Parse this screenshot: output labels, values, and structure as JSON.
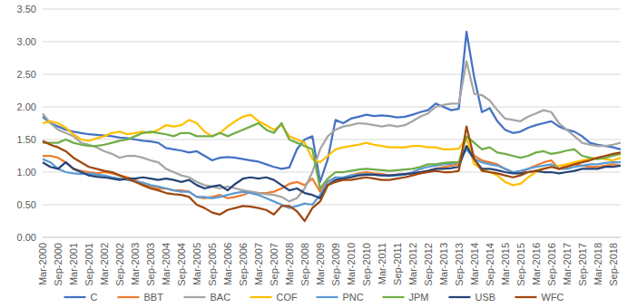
{
  "chart_data": {
    "type": "line",
    "categories": [
      "Mar-2000",
      null,
      "Sep-2000",
      null,
      "Mar-2001",
      null,
      "Sep-2001",
      null,
      "Mar-2002",
      null,
      "Sep-2002",
      null,
      "Mar-2003",
      null,
      "Sep-2003",
      null,
      "Mar-2004",
      null,
      "Sep-2004",
      null,
      "Mar-2005",
      null,
      "Sep-2005",
      null,
      "Mar-2006",
      null,
      "Sep-2006",
      null,
      "Mar-2007",
      null,
      "Sep-2007",
      null,
      "Mar-2008",
      null,
      "Sep-2008",
      null,
      "Mar-2009",
      null,
      "Sep-2009",
      null,
      "Mar-2010",
      null,
      "Sep-2010",
      null,
      "Mar-2011",
      null,
      "Sep-2011",
      null,
      "Mar-2012",
      null,
      "Sep-2012",
      null,
      "Mar-2013",
      null,
      "Sep-2013",
      null,
      "Mar-2014",
      null,
      "Sep-2014",
      null,
      "Mar-2015",
      null,
      "Sep-2015",
      null,
      "Mar-2016",
      null,
      "Sep-2016",
      null,
      "Mar-2017",
      null,
      "Sep-2017",
      null,
      "Mar-2018",
      null,
      "Sep-2018",
      null
    ],
    "ylim": [
      0,
      3.5
    ],
    "yticks": [
      {
        "value": 0,
        "label": "0.00"
      },
      {
        "value": 0.5,
        "label": "0.50"
      },
      {
        "value": 1,
        "label": "1.00"
      },
      {
        "value": 1.5,
        "label": "1.50"
      },
      {
        "value": 2,
        "label": "2.00"
      },
      {
        "value": 2.5,
        "label": "2.50"
      },
      {
        "value": 3,
        "label": "3.00"
      },
      {
        "value": 3.5,
        "label": "3.50"
      }
    ],
    "grid": true,
    "legend": "bottom",
    "series": [
      {
        "name": "C",
        "color": "#4472c4",
        "values": [
          1.85,
          1.75,
          1.7,
          1.65,
          1.62,
          1.6,
          1.58,
          1.57,
          1.56,
          1.55,
          1.53,
          1.52,
          1.5,
          1.48,
          1.47,
          1.45,
          1.37,
          1.35,
          1.33,
          1.3,
          1.32,
          1.25,
          1.18,
          1.22,
          1.23,
          1.22,
          1.2,
          1.18,
          1.16,
          1.12,
          1.08,
          1.05,
          1.07,
          1.35,
          1.5,
          1.55,
          0.85,
          1.2,
          1.8,
          1.75,
          1.82,
          1.85,
          1.88,
          1.86,
          1.87,
          1.86,
          1.84,
          1.85,
          1.88,
          1.92,
          1.95,
          2.05,
          2.0,
          1.95,
          1.97,
          3.15,
          2.45,
          1.92,
          1.98,
          1.78,
          1.65,
          1.6,
          1.62,
          1.68,
          1.72,
          1.75,
          1.78,
          1.7,
          1.65,
          1.62,
          1.55,
          1.45,
          1.42,
          1.4,
          1.38,
          1.35
        ]
      },
      {
        "name": "BBT",
        "color": "#ed7d31",
        "values": [
          1.25,
          1.25,
          1.22,
          1.15,
          1.05,
          1.02,
          1.0,
          0.98,
          1.0,
          0.98,
          0.95,
          0.92,
          0.88,
          0.82,
          0.78,
          0.75,
          0.75,
          0.72,
          0.72,
          0.7,
          0.62,
          0.6,
          0.62,
          0.65,
          0.6,
          0.62,
          0.65,
          0.7,
          0.68,
          0.68,
          0.7,
          0.75,
          0.82,
          0.85,
          0.8,
          0.9,
          0.7,
          0.85,
          0.92,
          0.9,
          0.95,
          0.98,
          1.0,
          0.98,
          0.97,
          0.95,
          0.96,
          0.97,
          0.98,
          1.0,
          1.02,
          1.05,
          1.08,
          1.1,
          1.12,
          1.4,
          1.25,
          1.18,
          1.15,
          1.12,
          1.05,
          1.0,
          0.98,
          1.05,
          1.1,
          1.15,
          1.18,
          1.05,
          1.1,
          1.12,
          1.1,
          1.08,
          1.08,
          1.1,
          1.12,
          1.1
        ]
      },
      {
        "name": "BAC",
        "color": "#a5a5a5",
        "values": [
          1.9,
          1.75,
          1.65,
          1.6,
          1.55,
          1.45,
          1.42,
          1.38,
          1.32,
          1.28,
          1.22,
          1.25,
          1.25,
          1.22,
          1.18,
          1.15,
          1.05,
          1.0,
          0.95,
          0.92,
          0.85,
          0.8,
          0.78,
          0.75,
          0.78,
          0.75,
          0.72,
          0.7,
          0.68,
          0.66,
          0.65,
          0.62,
          0.55,
          0.6,
          0.75,
          1.0,
          1.35,
          1.55,
          1.65,
          1.7,
          1.72,
          1.75,
          1.74,
          1.72,
          1.7,
          1.72,
          1.7,
          1.72,
          1.78,
          1.85,
          1.9,
          2.0,
          2.03,
          2.05,
          2.05,
          2.7,
          2.2,
          2.18,
          2.1,
          1.95,
          1.82,
          1.8,
          1.78,
          1.85,
          1.9,
          1.95,
          1.92,
          1.75,
          1.65,
          1.55,
          1.45,
          1.42,
          1.4,
          1.4,
          1.42,
          1.45
        ]
      },
      {
        "name": "COF",
        "color": "#ffc000",
        "values": [
          1.75,
          1.78,
          1.75,
          1.68,
          1.58,
          1.5,
          1.48,
          1.52,
          1.55,
          1.6,
          1.62,
          1.58,
          1.6,
          1.62,
          1.6,
          1.65,
          1.72,
          1.7,
          1.72,
          1.8,
          1.75,
          1.62,
          1.55,
          1.6,
          1.7,
          1.78,
          1.85,
          1.88,
          1.78,
          1.72,
          1.65,
          1.72,
          1.55,
          1.5,
          1.45,
          1.2,
          1.15,
          1.25,
          1.35,
          1.38,
          1.4,
          1.42,
          1.45,
          1.42,
          1.4,
          1.38,
          1.38,
          1.38,
          1.4,
          1.4,
          1.38,
          1.38,
          1.35,
          1.35,
          1.36,
          1.52,
          1.12,
          1.05,
          1.0,
          0.95,
          0.85,
          0.8,
          0.82,
          0.92,
          1.0,
          1.05,
          1.08,
          1.1,
          1.12,
          1.15,
          1.18,
          1.2,
          1.22,
          1.2,
          1.18,
          1.22
        ]
      },
      {
        "name": "PNC",
        "color": "#5b9bd5",
        "values": [
          1.2,
          1.15,
          1.05,
          1.0,
          0.98,
          0.97,
          0.98,
          0.96,
          0.95,
          0.92,
          0.9,
          0.88,
          0.86,
          0.84,
          0.8,
          0.78,
          0.75,
          0.72,
          0.7,
          0.7,
          0.62,
          0.62,
          0.6,
          0.62,
          0.65,
          0.68,
          0.7,
          0.68,
          0.65,
          0.6,
          0.55,
          0.5,
          0.45,
          0.48,
          0.52,
          0.5,
          0.65,
          0.85,
          0.92,
          0.92,
          0.95,
          0.96,
          0.97,
          0.96,
          0.95,
          0.94,
          0.95,
          0.96,
          1.0,
          1.05,
          1.08,
          1.1,
          1.12,
          1.13,
          1.15,
          1.35,
          1.2,
          1.15,
          1.12,
          1.1,
          1.05,
          1.0,
          1.02,
          1.05,
          1.08,
          1.1,
          1.12,
          1.05,
          1.05,
          1.08,
          1.1,
          1.12,
          1.12,
          1.14,
          1.15,
          1.15
        ]
      },
      {
        "name": "JPM",
        "color": "#70ad47",
        "values": [
          1.45,
          1.45,
          1.45,
          1.5,
          1.45,
          1.42,
          1.4,
          1.4,
          1.42,
          1.45,
          1.48,
          1.5,
          1.55,
          1.6,
          1.62,
          1.6,
          1.58,
          1.55,
          1.6,
          1.6,
          1.55,
          1.55,
          1.55,
          1.6,
          1.55,
          1.6,
          1.65,
          1.7,
          1.75,
          1.65,
          1.6,
          1.75,
          1.5,
          1.45,
          1.4,
          1.35,
          0.75,
          0.9,
          1.0,
          1.0,
          1.02,
          1.04,
          1.05,
          1.04,
          1.03,
          1.02,
          1.03,
          1.04,
          1.05,
          1.08,
          1.12,
          1.12,
          1.14,
          1.15,
          1.15,
          1.55,
          1.45,
          1.35,
          1.38,
          1.3,
          1.28,
          1.25,
          1.22,
          1.25,
          1.3,
          1.32,
          1.28,
          1.3,
          1.33,
          1.35,
          1.25,
          1.22,
          1.2,
          1.22,
          1.25,
          1.28
        ]
      },
      {
        "name": "USB",
        "color": "#264478",
        "values": [
          1.15,
          1.08,
          1.05,
          1.15,
          1.05,
          1.0,
          0.95,
          0.93,
          0.92,
          0.9,
          0.88,
          0.9,
          0.9,
          0.92,
          0.9,
          0.88,
          0.9,
          0.88,
          0.85,
          0.88,
          0.8,
          0.75,
          0.78,
          0.8,
          0.72,
          0.82,
          0.9,
          0.92,
          0.9,
          0.92,
          0.88,
          0.8,
          0.72,
          0.75,
          0.68,
          0.65,
          0.6,
          0.8,
          0.88,
          0.9,
          0.92,
          0.95,
          0.96,
          0.96,
          0.95,
          0.95,
          0.96,
          0.97,
          0.98,
          1.0,
          1.02,
          1.05,
          1.05,
          1.06,
          1.08,
          1.4,
          1.2,
          1.05,
          1.05,
          1.03,
          1.0,
          0.98,
          0.98,
          1.0,
          1.02,
          1.0,
          1.0,
          0.98,
          1.0,
          1.02,
          1.05,
          1.05,
          1.05,
          1.08,
          1.08,
          1.1
        ]
      },
      {
        "name": "WFC",
        "color": "#9e480e",
        "values": [
          1.48,
          1.42,
          1.38,
          1.32,
          1.22,
          1.15,
          1.08,
          1.05,
          1.02,
          1.0,
          0.95,
          0.9,
          0.85,
          0.8,
          0.75,
          0.72,
          0.68,
          0.66,
          0.65,
          0.62,
          0.5,
          0.45,
          0.38,
          0.35,
          0.42,
          0.45,
          0.48,
          0.47,
          0.45,
          0.42,
          0.35,
          0.48,
          0.48,
          0.4,
          0.25,
          0.45,
          0.55,
          0.8,
          0.85,
          0.88,
          0.88,
          0.9,
          0.92,
          0.9,
          0.88,
          0.88,
          0.9,
          0.92,
          0.95,
          0.98,
          1.0,
          1.02,
          1.0,
          1.0,
          1.02,
          1.7,
          1.2,
          1.02,
          1.0,
          0.98,
          0.95,
          0.92,
          0.95,
          1.0,
          1.02,
          1.05,
          1.08,
          1.05,
          1.08,
          1.12,
          1.15,
          1.18,
          1.22,
          1.25,
          1.28,
          1.3
        ]
      }
    ]
  }
}
